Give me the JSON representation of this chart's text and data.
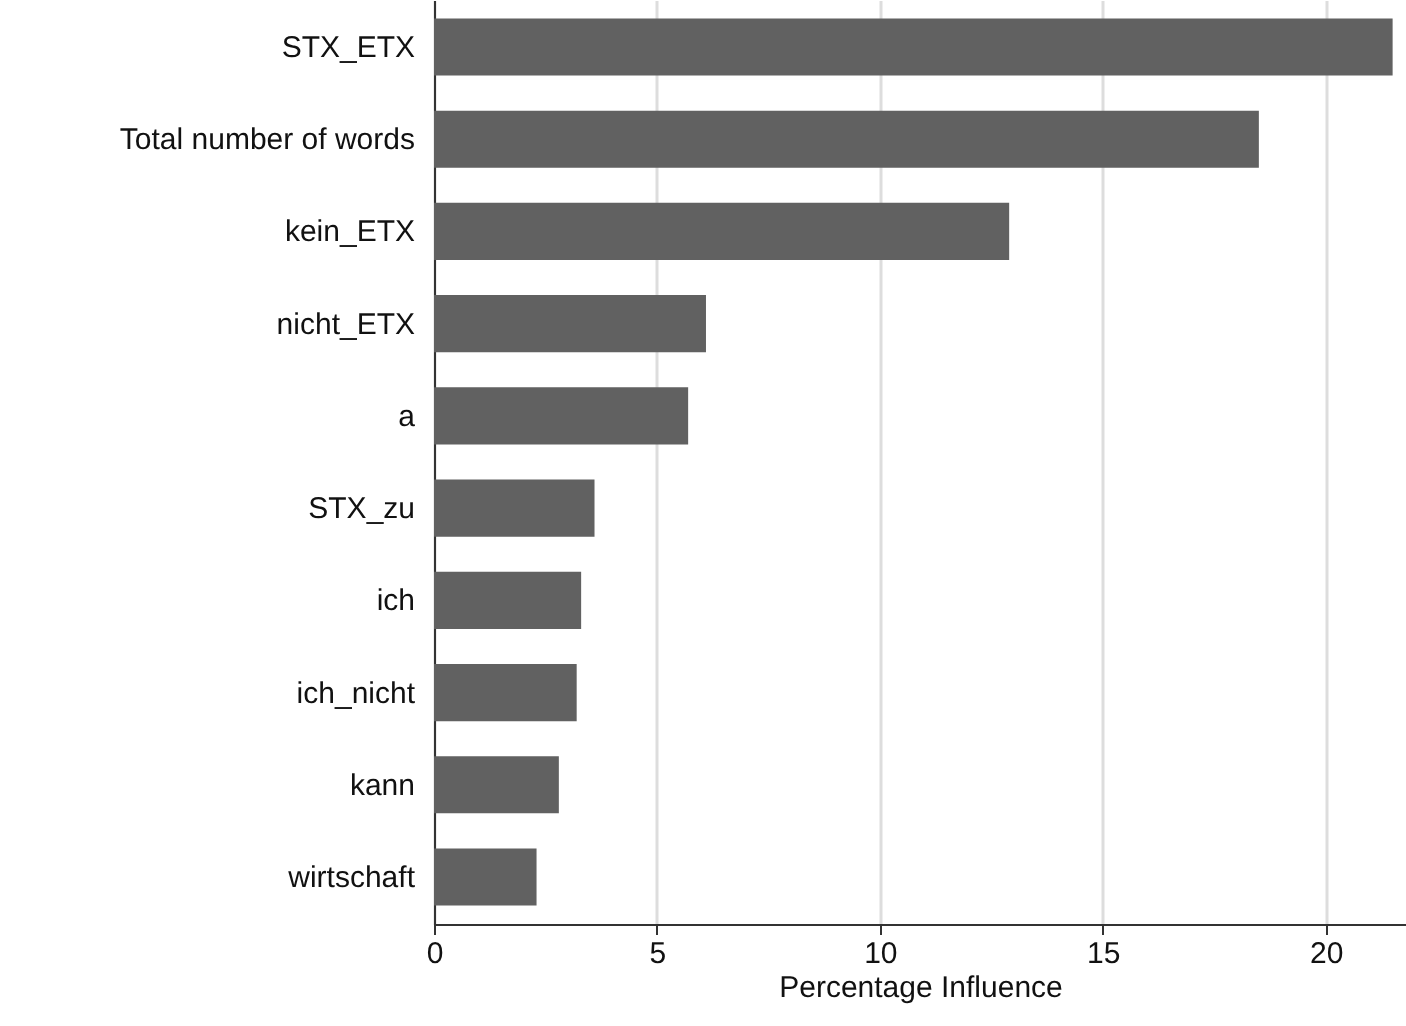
{
  "chart_data": {
    "type": "bar",
    "orientation": "horizontal",
    "xlabel": "Percentage Influence",
    "categories": [
      "STX_ETX",
      "Total number of words",
      "kein_ETX",
      "nicht_ETX",
      "a",
      "STX_zu",
      "ich",
      "ich_nicht",
      "kann",
      "wirtschaft"
    ],
    "values": [
      21.5,
      18.5,
      12.9,
      6.1,
      5.7,
      3.6,
      3.3,
      3.2,
      2.8,
      2.3
    ],
    "color": "#616161",
    "xlim": [
      0,
      21.8
    ],
    "xticks": [
      0,
      5,
      10,
      15,
      20
    ],
    "grid": "x"
  }
}
